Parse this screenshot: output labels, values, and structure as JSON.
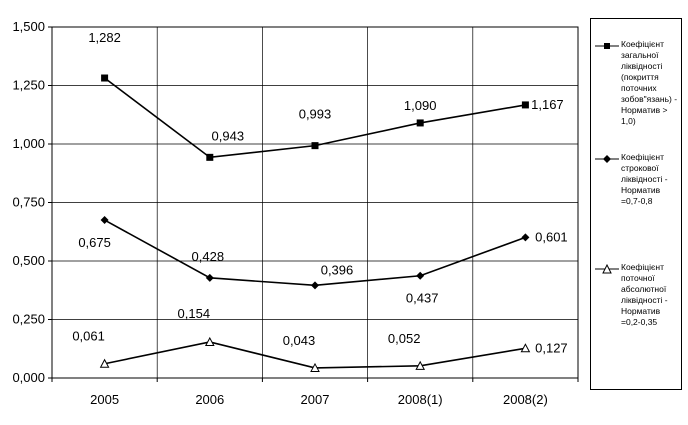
{
  "chart_data": {
    "type": "line",
    "categories": [
      "2005",
      "2006",
      "2007",
      "2008(1)",
      "2008(2)"
    ],
    "ylim": [
      0,
      1.5
    ],
    "yticks": [
      "0,000",
      "0,250",
      "0,500",
      "0,750",
      "1,000",
      "1,250",
      "1,500"
    ],
    "grid": true,
    "legend_position": "right",
    "series": [
      {
        "name": "Коефіцієнт загальної ліквідності (покриття поточних зобов\"язань) - Норматив > 1,0)",
        "marker": "square",
        "values": [
          1.282,
          0.943,
          0.993,
          1.09,
          1.167
        ],
        "labels": [
          "1,282",
          "0,943",
          "0,993",
          "1,090",
          "1,167"
        ]
      },
      {
        "name": "Коефіцієнт строкової ліквідності - Норматив =0,7-0,8",
        "marker": "diamond",
        "values": [
          0.675,
          0.428,
          0.396,
          0.437,
          0.601
        ],
        "labels": [
          "0,675",
          "0,428",
          "0,396",
          "0,437",
          "0,601"
        ]
      },
      {
        "name": "Коефіцієнт поточної абсолютної ліквідності - Норматив =0,2-0,35",
        "marker": "triangle",
        "values": [
          0.061,
          0.154,
          0.043,
          0.052,
          0.127
        ],
        "labels": [
          "0,061",
          "0,154",
          "0,043",
          "0,052",
          "0,127"
        ]
      }
    ]
  }
}
